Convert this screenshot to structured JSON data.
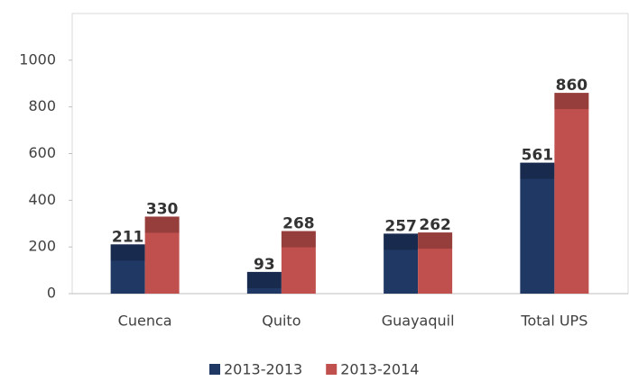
{
  "chart_data": {
    "type": "bar",
    "categories": [
      "Cuenca",
      "Quito",
      "Guayaquil",
      "Total UPS"
    ],
    "series": [
      {
        "name": "2013-2013",
        "color": "#1f3864",
        "values": [
          211,
          93,
          257,
          561
        ]
      },
      {
        "name": "2013-2014",
        "color": "#c0504d",
        "values": [
          330,
          268,
          262,
          860
        ]
      }
    ],
    "ylim": [
      0,
      1200
    ],
    "yticks": [
      0,
      200,
      400,
      600,
      800,
      1000
    ],
    "legend": "bottom"
  }
}
